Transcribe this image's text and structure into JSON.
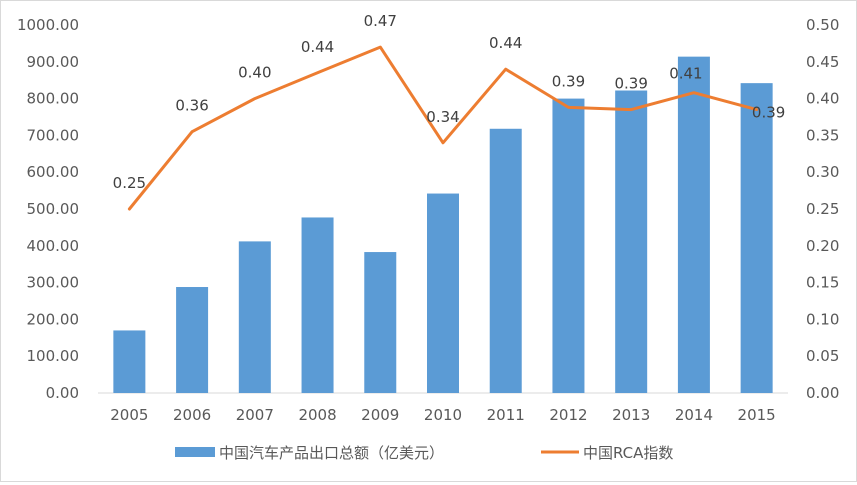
{
  "chart_data": {
    "type": "bar",
    "categories": [
      "2005",
      "2006",
      "2007",
      "2008",
      "2009",
      "2010",
      "2011",
      "2012",
      "2013",
      "2014",
      "2015"
    ],
    "series": [
      {
        "name": "中国汽车产品出口总额（亿美元）",
        "type": "bar",
        "axis": "left",
        "values": [
          170,
          288,
          412,
          477,
          383,
          542,
          718,
          800,
          822,
          914,
          842
        ],
        "color": "#5b9bd5"
      },
      {
        "name": "中国RCA指数",
        "type": "line",
        "axis": "right",
        "values": [
          0.25,
          0.36,
          0.4,
          0.44,
          0.47,
          0.34,
          0.44,
          0.39,
          0.39,
          0.41,
          0.39
        ],
        "plot_values": [
          0.25,
          0.355,
          0.4,
          0.435,
          0.47,
          0.34,
          0.44,
          0.388,
          0.385,
          0.408,
          0.385
        ],
        "data_labels": [
          "0.25",
          "0.36",
          "0.40",
          "0.44",
          "0.47",
          "0.34",
          "0.44",
          "0.39",
          "0.39",
          "0.41",
          "0.39"
        ],
        "color": "#ed7d31"
      }
    ],
    "y_left": {
      "ylim": [
        0,
        1000
      ],
      "ticks": [
        "0.00",
        "100.00",
        "200.00",
        "300.00",
        "400.00",
        "500.00",
        "600.00",
        "700.00",
        "800.00",
        "900.00",
        "1000.00"
      ]
    },
    "y_right": {
      "ylim": [
        0,
        0.5
      ],
      "ticks": [
        "0.00",
        "0.05",
        "0.10",
        "0.15",
        "0.20",
        "0.25",
        "0.30",
        "0.35",
        "0.40",
        "0.45",
        "0.50"
      ]
    },
    "grid": false,
    "legend": {
      "position": "bottom",
      "entries": [
        "中国汽车产品出口总额（亿美元）",
        "中国RCA指数"
      ]
    }
  }
}
